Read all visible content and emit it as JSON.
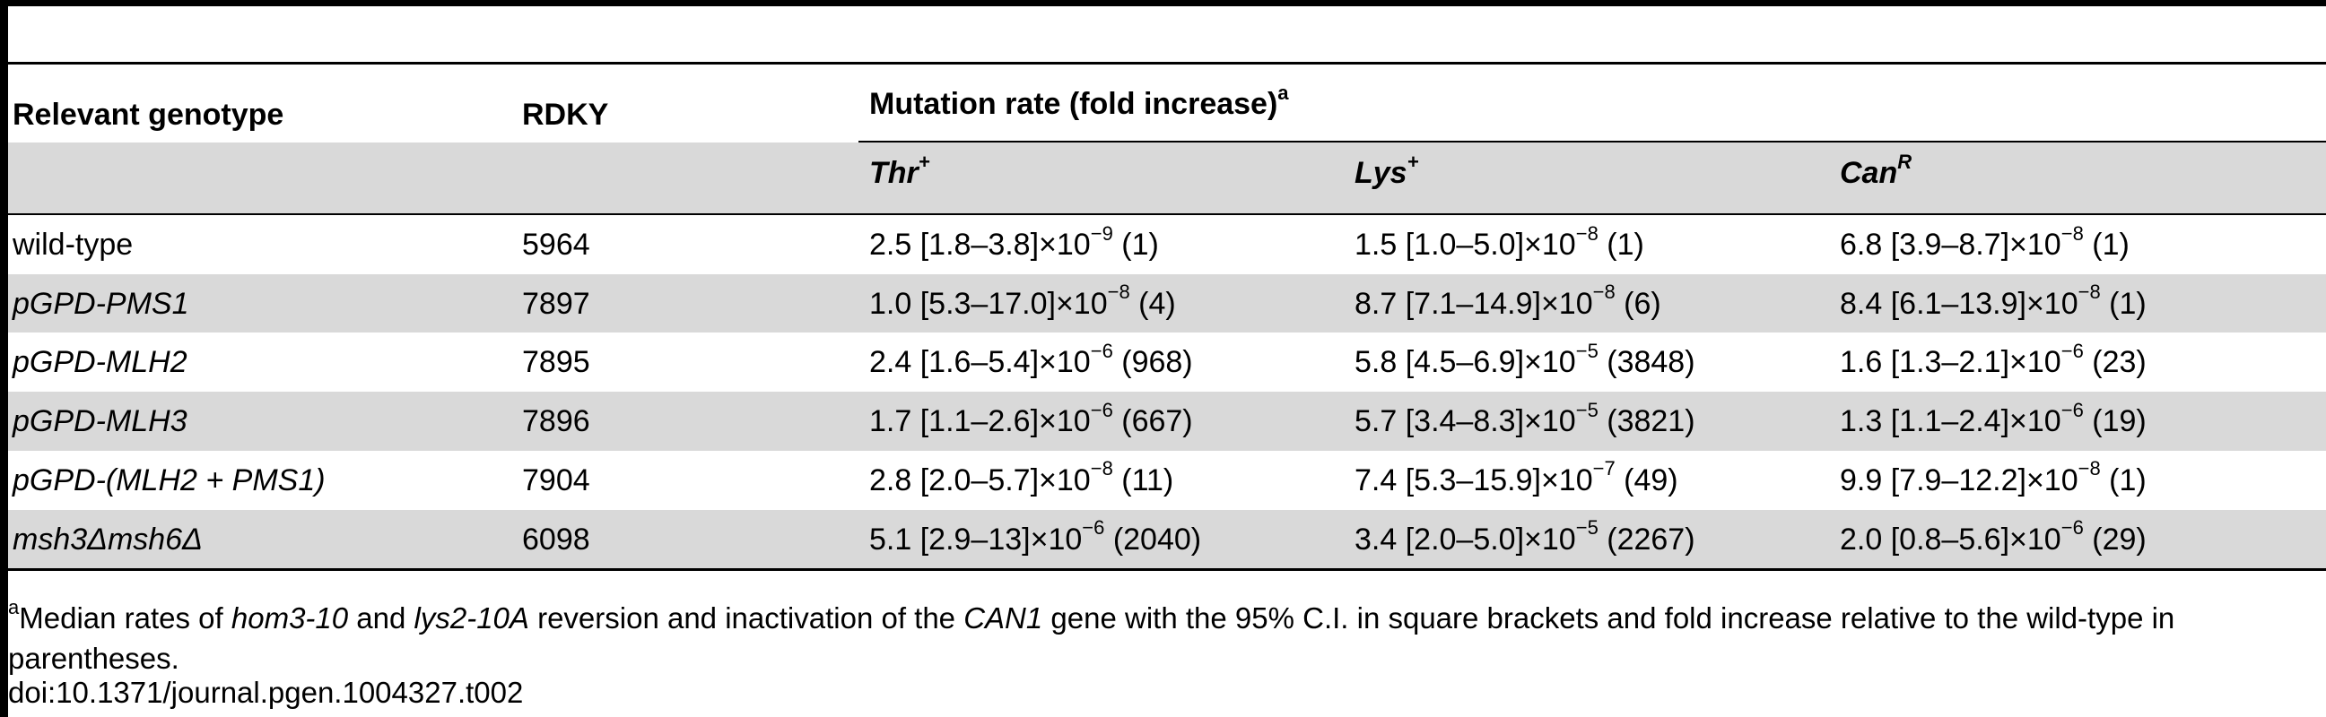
{
  "table": {
    "header": {
      "genotype": "Relevant genotype",
      "rdky": "RDKY",
      "mutation_rate": "Mutation rate (fold increase)",
      "mutation_rate_sup": "a",
      "sub": [
        {
          "base": "Thr",
          "sup": "+"
        },
        {
          "base": "Lys",
          "sup": "+"
        },
        {
          "base": "Can",
          "sup": "R"
        }
      ]
    },
    "rows": [
      {
        "genotype": "wild-type",
        "italic": false,
        "rdky": "5964",
        "thr": {
          "pre": "2.5 [1.8–3.8]×10",
          "exp": "−9",
          "post": " (1)"
        },
        "lys": {
          "pre": "1.5 [1.0–5.0]×10",
          "exp": "−8",
          "post": " (1)"
        },
        "can": {
          "pre": "6.8 [3.9–8.7]×10",
          "exp": "−8",
          "post": " (1)"
        }
      },
      {
        "genotype": "pGPD-PMS1",
        "italic": true,
        "rdky": "7897",
        "thr": {
          "pre": "1.0 [5.3–17.0]×10",
          "exp": "−8",
          "post": " (4)"
        },
        "lys": {
          "pre": "8.7 [7.1–14.9]×10",
          "exp": "−8",
          "post": " (6)"
        },
        "can": {
          "pre": "8.4 [6.1–13.9]×10",
          "exp": "−8",
          "post": " (1)"
        }
      },
      {
        "genotype": "pGPD-MLH2",
        "italic": true,
        "rdky": "7895",
        "thr": {
          "pre": "2.4 [1.6–5.4]×10",
          "exp": "−6",
          "post": " (968)"
        },
        "lys": {
          "pre": "5.8 [4.5–6.9]×10",
          "exp": "−5",
          "post": " (3848)"
        },
        "can": {
          "pre": "1.6 [1.3–2.1]×10",
          "exp": "−6",
          "post": " (23)"
        }
      },
      {
        "genotype": "pGPD-MLH3",
        "italic": true,
        "rdky": "7896",
        "thr": {
          "pre": "1.7 [1.1–2.6]×10",
          "exp": "−6",
          "post": " (667)"
        },
        "lys": {
          "pre": "5.7 [3.4–8.3]×10",
          "exp": "−5",
          "post": " (3821)"
        },
        "can": {
          "pre": "1.3 [1.1–2.4]×10",
          "exp": "−6",
          "post": " (19)"
        }
      },
      {
        "genotype": "pGPD-(MLH2 + PMS1)",
        "italic": true,
        "rdky": "7904",
        "thr": {
          "pre": "2.8 [2.0–5.7]×10",
          "exp": "−8",
          "post": " (11)"
        },
        "lys": {
          "pre": "7.4 [5.3–15.9]×10",
          "exp": "−7",
          "post": " (49)"
        },
        "can": {
          "pre": "9.9 [7.9–12.2]×10",
          "exp": "−8",
          "post": " (1)"
        }
      },
      {
        "genotype": "msh3Δmsh6Δ",
        "italic": true,
        "rdky": "6098",
        "thr": {
          "pre": "5.1 [2.9–13]×10",
          "exp": "−6",
          "post": " (2040)"
        },
        "lys": {
          "pre": "3.4 [2.0–5.0]×10",
          "exp": "−5",
          "post": " (2267)"
        },
        "can": {
          "pre": "2.0 [0.8–5.6]×10",
          "exp": "−6",
          "post": " (29)"
        }
      }
    ]
  },
  "footnote": {
    "marker": "a",
    "t1": "Median rates of ",
    "t2": "hom3-10",
    "t3": " and ",
    "t4": "lys2-10A",
    "t5": " reversion and inactivation of the ",
    "t6": "CAN1",
    "t7": " gene with the 95% C.I. in square brackets and fold increase relative to the wild-type in",
    "line2": "parentheses.",
    "doi": "doi:10.1371/journal.pgen.1004327.t002"
  }
}
